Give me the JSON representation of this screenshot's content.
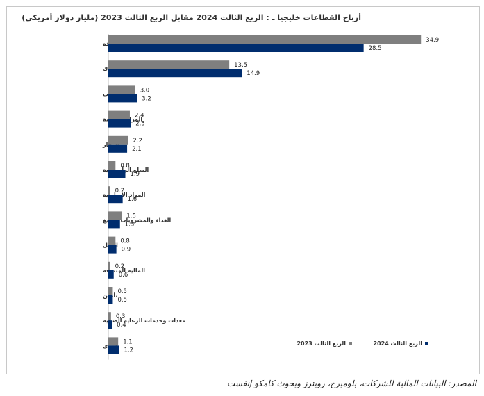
{
  "chart_data": {
    "type": "bar",
    "orientation": "horizontal",
    "title": "أرباح القطاعات خليجيا ـ : الربع  الثالث 2024 مقابل الربع  الثالث 2023 (مليار دولار أمريكي)",
    "categories": [
      "طاقة",
      "البنوك",
      "الاتصالات",
      "المرافق العامة",
      "العقار",
      "السلع الرأسمالية",
      "المواد الأساسية",
      "الغذاء والمشروبات والتبغ",
      "النقل",
      "المالية المتنوعة",
      "تأمين",
      "معدات وخدمات الرعاية الصحية",
      "أخرى"
    ],
    "series": [
      {
        "name": "الربع الثالث 2023",
        "color": "#7f7f7f",
        "values": [
          34.9,
          13.5,
          3.0,
          2.4,
          2.2,
          0.8,
          0.2,
          1.5,
          0.8,
          0.2,
          0.5,
          0.3,
          1.1
        ]
      },
      {
        "name": "الربع الثالث 2024",
        "color": "#002d6e",
        "values": [
          28.5,
          14.9,
          3.2,
          2.5,
          2.1,
          1.9,
          1.6,
          1.3,
          0.9,
          0.6,
          0.5,
          0.4,
          1.2
        ]
      }
    ],
    "xlim": [
      0,
      40
    ],
    "grid": false,
    "legend_position": "bottom-right",
    "data_labels": true
  },
  "source": "المصدر: البيانات المالية للشركات، بلومبرج، رويترز وبحوث كامكو إنفست"
}
